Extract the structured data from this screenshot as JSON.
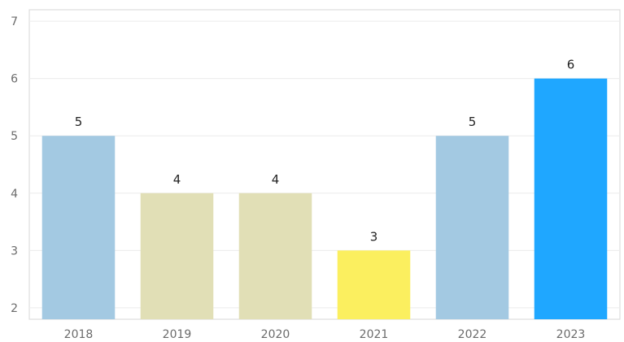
{
  "chart_data": {
    "type": "bar",
    "title": "",
    "xlabel": "",
    "ylabel": "",
    "categories": [
      "2018",
      "2019",
      "2020",
      "2021",
      "2022",
      "2023"
    ],
    "values": [
      5,
      4,
      4,
      3,
      5,
      6
    ],
    "bar_colors": [
      "#a3c9e2",
      "#e1dfb6",
      "#e1dfb6",
      "#fbef5f",
      "#a3c9e2",
      "#1fa7ff"
    ],
    "ylim": [
      1.8,
      7.2
    ],
    "y_ticks": [
      2,
      3,
      4,
      5,
      6,
      7
    ],
    "grid": true,
    "legend": "none",
    "data_labels": [
      "5",
      "4",
      "4",
      "3",
      "5",
      "6"
    ],
    "colors": {
      "grid": "#ececec",
      "axis": "#d7d7d7",
      "tick_text": "#6b6b6b",
      "value_text": "#222222"
    }
  }
}
